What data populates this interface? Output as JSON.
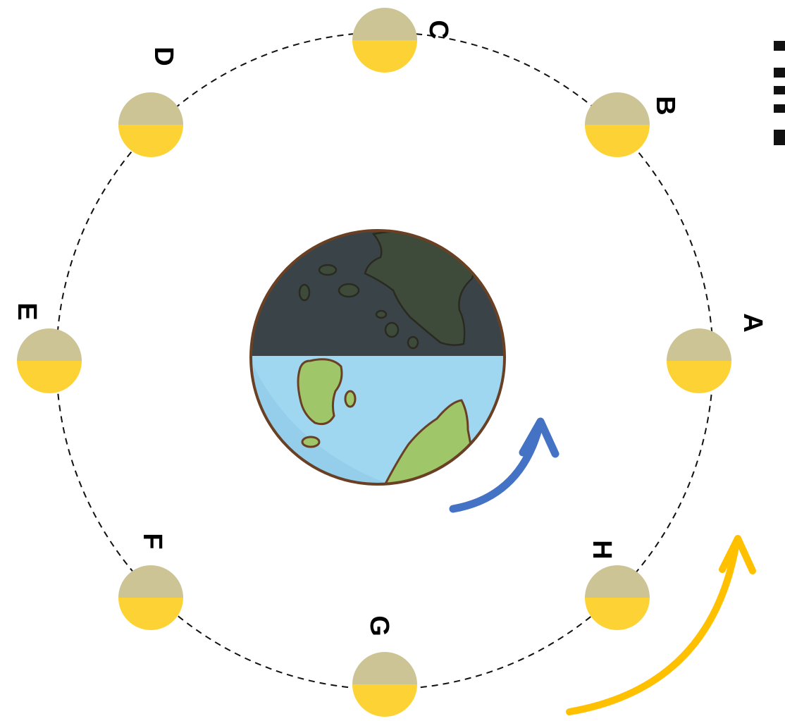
{
  "diagram": {
    "moon_labels": [
      "A",
      "B",
      "C",
      "D",
      "E",
      "F",
      "G",
      "H"
    ],
    "colors": {
      "moon_lit": "#FDD235",
      "moon_dark": "#CDC496",
      "earth_night": "#3A4448",
      "earth_day": "#9FD6F0",
      "earth_outline": "#6A4024",
      "land_day": "#9FC76A",
      "land_night": "#3E4B3A",
      "earth_rotation_arrow": "#4472C4",
      "moon_orbit_arrow": "#FFC000",
      "sunlight_strip": "#111111"
    },
    "icons": {
      "sunlight": "sun-rays-icon",
      "earth": "earth-globe-icon",
      "earth_rotation": "curved-arrow-icon",
      "moon_orbit": "curved-arrow-icon"
    }
  }
}
